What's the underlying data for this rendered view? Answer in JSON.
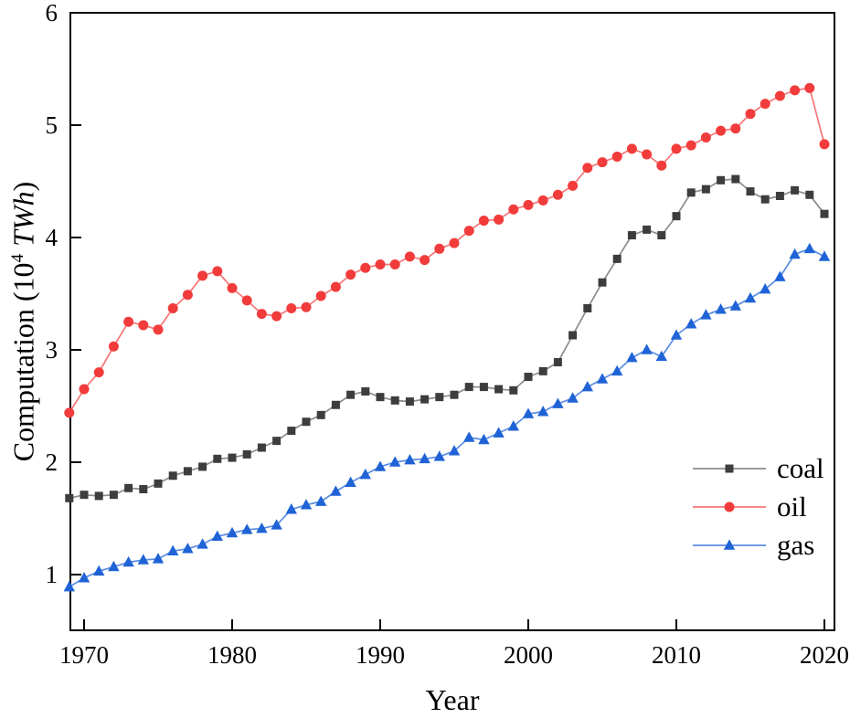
{
  "chart_data": {
    "type": "line",
    "title": "",
    "xlabel": "Year",
    "ylabel": {
      "pre": "Computation (10",
      "sup": "4",
      "unit": "TWh",
      "post": ")"
    },
    "axis": {
      "xlim": [
        1969.0,
        2020.7
      ],
      "ylim": [
        0.5,
        6.0
      ],
      "xticks": [
        1970,
        1980,
        1990,
        2000,
        2010,
        2020
      ],
      "yticks": [
        1,
        2,
        3,
        4,
        5,
        6
      ],
      "grid": false,
      "tick_direction": "in"
    },
    "legend": {
      "position": "inside-right",
      "items": [
        "coal",
        "oil",
        "gas"
      ]
    },
    "frame_color": "#000000",
    "text_color": "#000000",
    "x": [
      1969,
      1970,
      1971,
      1972,
      1973,
      1974,
      1975,
      1976,
      1977,
      1978,
      1979,
      1980,
      1981,
      1982,
      1983,
      1984,
      1985,
      1986,
      1987,
      1988,
      1989,
      1990,
      1991,
      1992,
      1993,
      1994,
      1995,
      1996,
      1997,
      1998,
      1999,
      2000,
      2001,
      2002,
      2003,
      2004,
      2005,
      2006,
      2007,
      2008,
      2009,
      2010,
      2011,
      2012,
      2013,
      2014,
      2015,
      2016,
      2017,
      2018,
      2019,
      2020
    ],
    "series": [
      {
        "name": "coal",
        "marker": "square",
        "marker_color": "#3d3d3d",
        "line_color": "#8c8c8c",
        "values": [
          1.68,
          1.71,
          1.7,
          1.71,
          1.77,
          1.76,
          1.81,
          1.88,
          1.92,
          1.96,
          2.03,
          2.04,
          2.07,
          2.13,
          2.19,
          2.28,
          2.36,
          2.42,
          2.51,
          2.6,
          2.63,
          2.58,
          2.55,
          2.54,
          2.56,
          2.58,
          2.6,
          2.67,
          2.67,
          2.65,
          2.64,
          2.76,
          2.81,
          2.89,
          3.13,
          3.37,
          3.6,
          3.81,
          4.02,
          4.07,
          4.02,
          4.19,
          4.4,
          4.43,
          4.51,
          4.52,
          4.41,
          4.34,
          4.37,
          4.42,
          4.38,
          4.21
        ]
      },
      {
        "name": "oil",
        "marker": "circle",
        "marker_color": "#f23b3b",
        "line_color": "#f67676",
        "values": [
          2.44,
          2.65,
          2.8,
          3.03,
          3.25,
          3.22,
          3.18,
          3.37,
          3.49,
          3.66,
          3.7,
          3.55,
          3.44,
          3.32,
          3.3,
          3.37,
          3.38,
          3.48,
          3.56,
          3.67,
          3.73,
          3.76,
          3.76,
          3.83,
          3.8,
          3.9,
          3.95,
          4.06,
          4.15,
          4.16,
          4.25,
          4.29,
          4.33,
          4.38,
          4.46,
          4.62,
          4.67,
          4.72,
          4.79,
          4.74,
          4.64,
          4.79,
          4.82,
          4.89,
          4.95,
          4.97,
          5.1,
          5.19,
          5.26,
          5.31,
          5.33,
          4.83
        ]
      },
      {
        "name": "gas",
        "marker": "triangle",
        "marker_color": "#1f63d6",
        "line_color": "#5b8de2",
        "values": [
          0.89,
          0.97,
          1.03,
          1.07,
          1.11,
          1.13,
          1.14,
          1.21,
          1.23,
          1.27,
          1.34,
          1.37,
          1.4,
          1.41,
          1.44,
          1.58,
          1.62,
          1.65,
          1.74,
          1.82,
          1.89,
          1.96,
          2.0,
          2.02,
          2.03,
          2.05,
          2.1,
          2.22,
          2.2,
          2.26,
          2.32,
          2.43,
          2.45,
          2.52,
          2.57,
          2.67,
          2.74,
          2.81,
          2.93,
          3.0,
          2.94,
          3.13,
          3.23,
          3.31,
          3.36,
          3.39,
          3.46,
          3.54,
          3.65,
          3.85,
          3.9,
          3.83
        ]
      }
    ]
  }
}
